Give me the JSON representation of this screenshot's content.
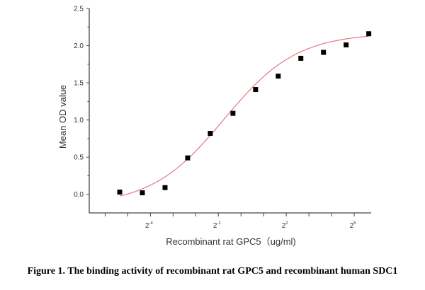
{
  "chart_data": {
    "type": "scatter",
    "title": "",
    "caption": "Figure 1. The binding activity of recombinant rat GPC5 and recombinant human SDC1",
    "xlabel": "Recombinant rat  GPC5（ug/ml)",
    "ylabel": "Mean OD value",
    "x_scale": "log2",
    "xlim": [
      0.0096,
      53.8
    ],
    "ylim": [
      -0.25,
      2.5
    ],
    "x_ticks": [
      0.015625,
      0.03125,
      0.0625,
      0.125,
      0.25,
      0.5,
      1,
      2,
      4,
      8,
      16,
      32
    ],
    "x_tick_labels": [
      {
        "value": 0.0625,
        "base": "2",
        "exp": "-4"
      },
      {
        "value": 0.5,
        "base": "2",
        "exp": "-1"
      },
      {
        "value": 4,
        "base": "2",
        "exp": "2"
      },
      {
        "value": 32,
        "base": "2",
        "exp": "5"
      }
    ],
    "y_ticks": [
      "0.0",
      "0.5",
      "1.0",
      "1.5",
      "2.0",
      "2.5"
    ],
    "grid": false,
    "series": [
      {
        "marker": "square",
        "color": "#000000",
        "x": [
          0.0244,
          0.0488,
          0.0977,
          0.1953,
          0.3906,
          0.7813,
          1.5625,
          3.125,
          6.25,
          12.5,
          25,
          50
        ],
        "y": [
          0.03,
          0.02,
          0.09,
          0.49,
          0.82,
          1.09,
          1.41,
          1.59,
          1.83,
          1.91,
          2.01,
          2.16
        ]
      }
    ],
    "fit": {
      "type": "logistic",
      "color": "#e07a80",
      "bottom": -0.15,
      "top": 2.17,
      "log2_midpoint": -0.75,
      "slope": 0.62
    }
  }
}
